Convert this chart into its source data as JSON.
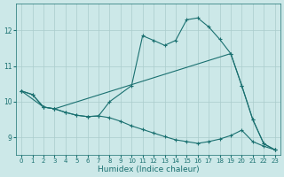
{
  "xlabel": "Humidex (Indice chaleur)",
  "bg_color": "#cce8e8",
  "grid_color": "#aacccc",
  "line_color": "#1a7070",
  "xlim": [
    -0.5,
    23.5
  ],
  "ylim": [
    8.5,
    12.75
  ],
  "yticks": [
    9,
    10,
    11,
    12
  ],
  "xticks": [
    0,
    1,
    2,
    3,
    4,
    5,
    6,
    7,
    8,
    9,
    10,
    11,
    12,
    13,
    14,
    15,
    16,
    17,
    18,
    19,
    20,
    21,
    22,
    23
  ],
  "line1_x": [
    0,
    1,
    2,
    3,
    4,
    5,
    6,
    7,
    8,
    10,
    11,
    12,
    13,
    14,
    15,
    16,
    17,
    18,
    19,
    20,
    21,
    22,
    23
  ],
  "line1_y": [
    10.3,
    10.2,
    9.85,
    9.8,
    9.7,
    9.62,
    9.58,
    9.6,
    10.0,
    10.45,
    11.85,
    11.72,
    11.58,
    11.72,
    12.3,
    12.35,
    12.1,
    11.75,
    11.35,
    10.45,
    9.5,
    8.82,
    8.65
  ],
  "line2_x": [
    0,
    2,
    3,
    19,
    20,
    21,
    22,
    23
  ],
  "line2_y": [
    10.3,
    9.85,
    9.8,
    11.35,
    10.45,
    9.5,
    8.82,
    8.65
  ],
  "line3_x": [
    0,
    1,
    2,
    3,
    4,
    5,
    6,
    7,
    8,
    9,
    10,
    11,
    12,
    13,
    14,
    15,
    16,
    17,
    18,
    19,
    20,
    21,
    22,
    23
  ],
  "line3_y": [
    10.3,
    10.2,
    9.85,
    9.8,
    9.7,
    9.62,
    9.58,
    9.6,
    9.55,
    9.45,
    9.32,
    9.22,
    9.12,
    9.02,
    8.93,
    8.88,
    8.83,
    8.88,
    8.95,
    9.05,
    9.2,
    8.88,
    8.75,
    8.65
  ]
}
